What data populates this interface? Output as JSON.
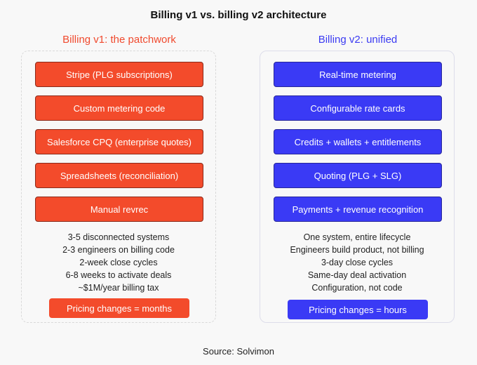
{
  "title": "Billing v1 vs. billing v2 architecture",
  "v1": {
    "heading": "Billing v1: the patchwork",
    "boxes": [
      "Stripe (PLG subscriptions)",
      "Custom metering code",
      "Salesforce CPQ (enterprise quotes)",
      "Spreadsheets (reconciliation)",
      "Manual revrec"
    ],
    "stats": [
      "3-5 disconnected systems",
      "2-3 engineers on billing code",
      "2-week close cycles",
      "6-8 weeks to activate deals",
      "~$1M/year billing tax"
    ],
    "pill": "Pricing changes = months",
    "accent": "#f34b2b"
  },
  "v2": {
    "heading": "Billing v2: unified",
    "boxes": [
      "Real-time metering",
      "Configurable rate cards",
      "Credits + wallets + entitlements",
      "Quoting (PLG + SLG)",
      "Payments + revenue recognition"
    ],
    "stats": [
      "One system, entire lifecycle",
      "Engineers build product, not billing",
      "3-day close cycles",
      "Same-day deal activation",
      "Configuration, not code"
    ],
    "pill": "Pricing changes = hours",
    "accent": "#3a3af5"
  },
  "source": "Source: Solvimon"
}
